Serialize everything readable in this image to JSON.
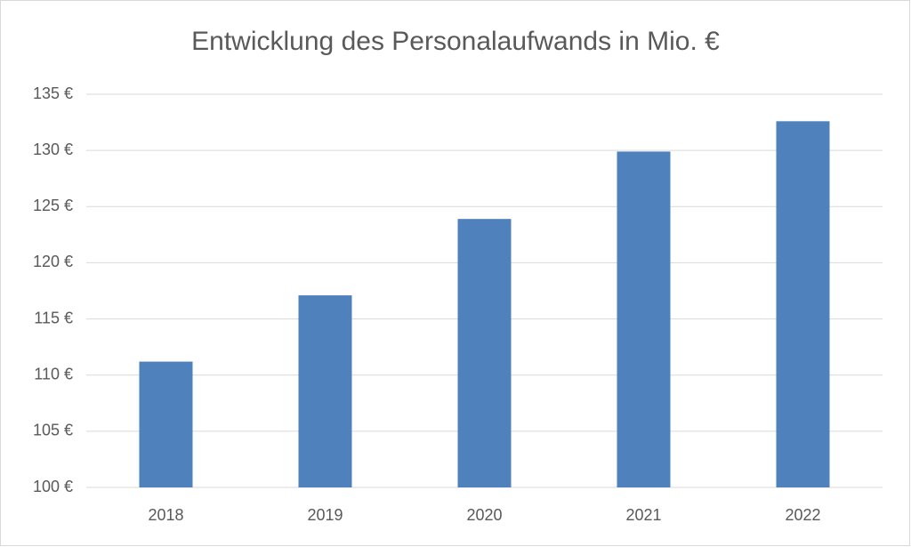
{
  "chart_data": {
    "type": "bar",
    "title": "Entwicklung des Personalaufwands in Mio. €",
    "categories": [
      "2018",
      "2019",
      "2020",
      "2021",
      "2022"
    ],
    "values": [
      111.2,
      117.1,
      123.9,
      129.9,
      132.6
    ],
    "color": "#4f81bd",
    "ylim": [
      100,
      135
    ],
    "yticks": [
      {
        "value": 100,
        "label": "100 €"
      },
      {
        "value": 105,
        "label": "105 €"
      },
      {
        "value": 110,
        "label": "110 €"
      },
      {
        "value": 115,
        "label": "115 €"
      },
      {
        "value": 120,
        "label": "120 €"
      },
      {
        "value": 125,
        "label": "125 €"
      },
      {
        "value": 130,
        "label": "130 €"
      },
      {
        "value": 135,
        "label": "135 €"
      }
    ],
    "grid": true
  }
}
